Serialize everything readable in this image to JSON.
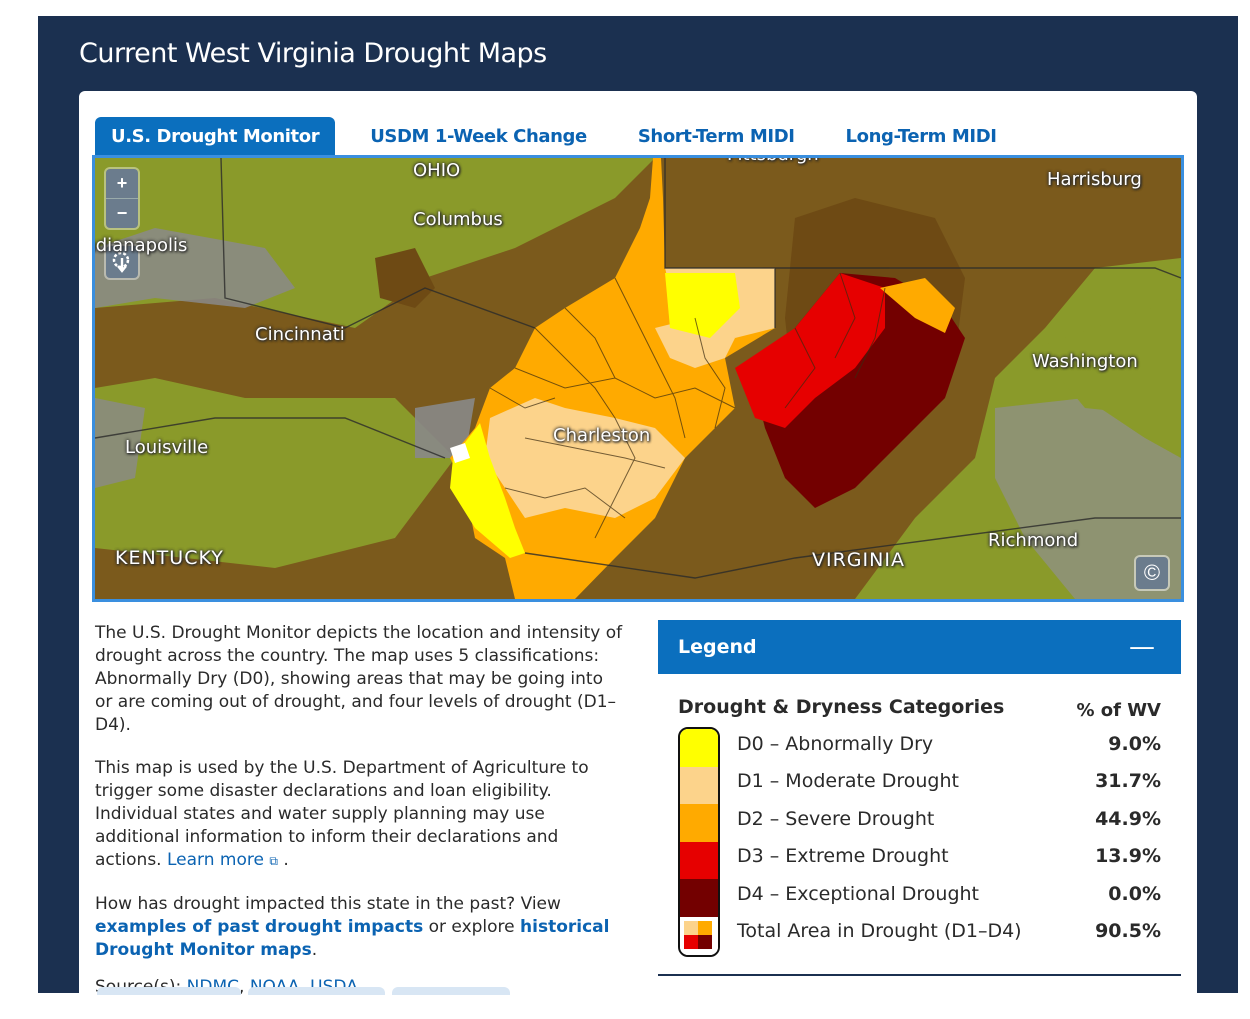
{
  "page": {
    "title": "Current West Virginia Drought Maps"
  },
  "tabs": [
    {
      "label": "U.S. Drought Monitor",
      "active": true
    },
    {
      "label": "USDM 1-Week Change",
      "active": false
    },
    {
      "label": "Short-Term MIDI",
      "active": false
    },
    {
      "label": "Long-Term MIDI",
      "active": false
    }
  ],
  "map": {
    "zoom_in": "+",
    "zoom_out": "−",
    "labels": {
      "ohio": "OHIO",
      "columbus": "Columbus",
      "pittsburgh": "Pittsburgh",
      "harrisburg": "Harrisburg",
      "indianapolis": "Indianapolis",
      "cincinnati": "Cincinnati",
      "washington": "Washington",
      "charleston": "Charleston",
      "louisville": "Louisville",
      "kentucky": "KENTUCKY",
      "virginia": "VIRGINIA",
      "richmond": "Richmond"
    },
    "colors": {
      "base": "#8a9a2a",
      "d0": "#ffff00",
      "d1": "#fcd38b",
      "d2": "#ffaa00",
      "d3": "#e60000",
      "d4": "#730000"
    }
  },
  "description": {
    "p1": "The U.S. Drought Monitor depicts the location and intensity of drought across the country. The map uses 5 classifications: Abnormally Dry (D0), showing areas that may be going into or are coming out of drought, and four levels of drought (D1–D4).",
    "p2": "This map is used by the U.S. Department of Agriculture to trigger some disaster declarations and loan eligibility. Individual states and water supply planning may use additional information to inform their declarations and actions.",
    "learn_more": "Learn more",
    "p2_end": ".",
    "p3_start": "How has drought impacted this state in the past? View",
    "impacts_link": "examples of past drought impacts",
    "p3_mid": "or explore",
    "historical_link": "historical Drought Monitor maps",
    "p3_end": ".",
    "sources_label": "Source(s):",
    "sources": [
      "NDMC",
      "NOAA",
      "USDA"
    ]
  },
  "legend": {
    "title": "Legend",
    "toggle": "—",
    "category_header": "Drought & Dryness Categories",
    "percent_header": "% of WV",
    "rows": [
      {
        "label": "D0 – Abnormally Dry",
        "percent": "9.0%",
        "color": "#ffff00"
      },
      {
        "label": "D1 – Moderate Drought",
        "percent": "31.7%",
        "color": "#fcd38b"
      },
      {
        "label": "D2 – Severe Drought",
        "percent": "44.9%",
        "color": "#ffaa00"
      },
      {
        "label": "D3 – Extreme Drought",
        "percent": "13.9%",
        "color": "#e60000"
      },
      {
        "label": "D4 – Exceptional Drought",
        "percent": "0.0%",
        "color": "#730000"
      },
      {
        "label": "Total Area in Drought (D1–D4)",
        "percent": "90.5%"
      }
    ]
  }
}
